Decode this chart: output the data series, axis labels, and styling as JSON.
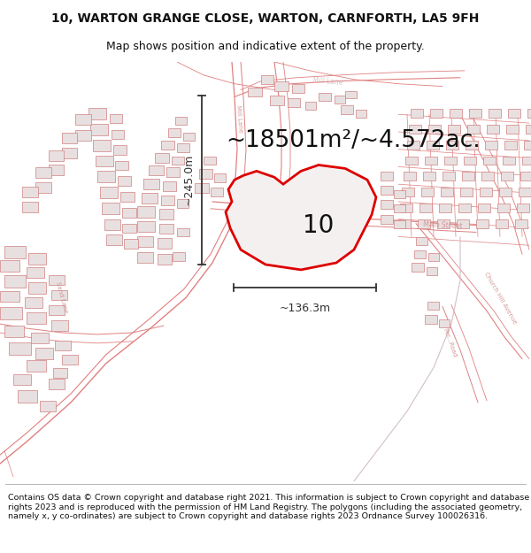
{
  "title_line1": "10, WARTON GRANGE CLOSE, WARTON, CARNFORTH, LA5 9FH",
  "title_line2": "Map shows position and indicative extent of the property.",
  "area_label": "~18501m²/~4.572ac.",
  "property_number": "10",
  "dim_horizontal": "~136.3m",
  "dim_vertical": "~245.0m",
  "footer_text": "Contains OS data © Crown copyright and database right 2021. This information is subject to Crown copyright and database rights 2023 and is reproduced with the permission of HM Land Registry. The polygons (including the associated geometry, namely x, y co-ordinates) are subject to Crown copyright and database rights 2023 Ordnance Survey 100026316.",
  "bg_color": "#ffffff",
  "map_bg": "#ffffff",
  "property_fill": "#f5f0f0",
  "property_edge": "#dd0000",
  "road_color": "#e08080",
  "building_fill": "#e8e0e0",
  "building_edge": "#d08080",
  "text_color": "#111111",
  "dim_color": "#333333",
  "street_label_color": "#cc8888",
  "title_fontsize": 10,
  "subtitle_fontsize": 9,
  "area_fontsize": 19,
  "number_fontsize": 20,
  "dim_fontsize": 9,
  "footer_fontsize": 6.8
}
